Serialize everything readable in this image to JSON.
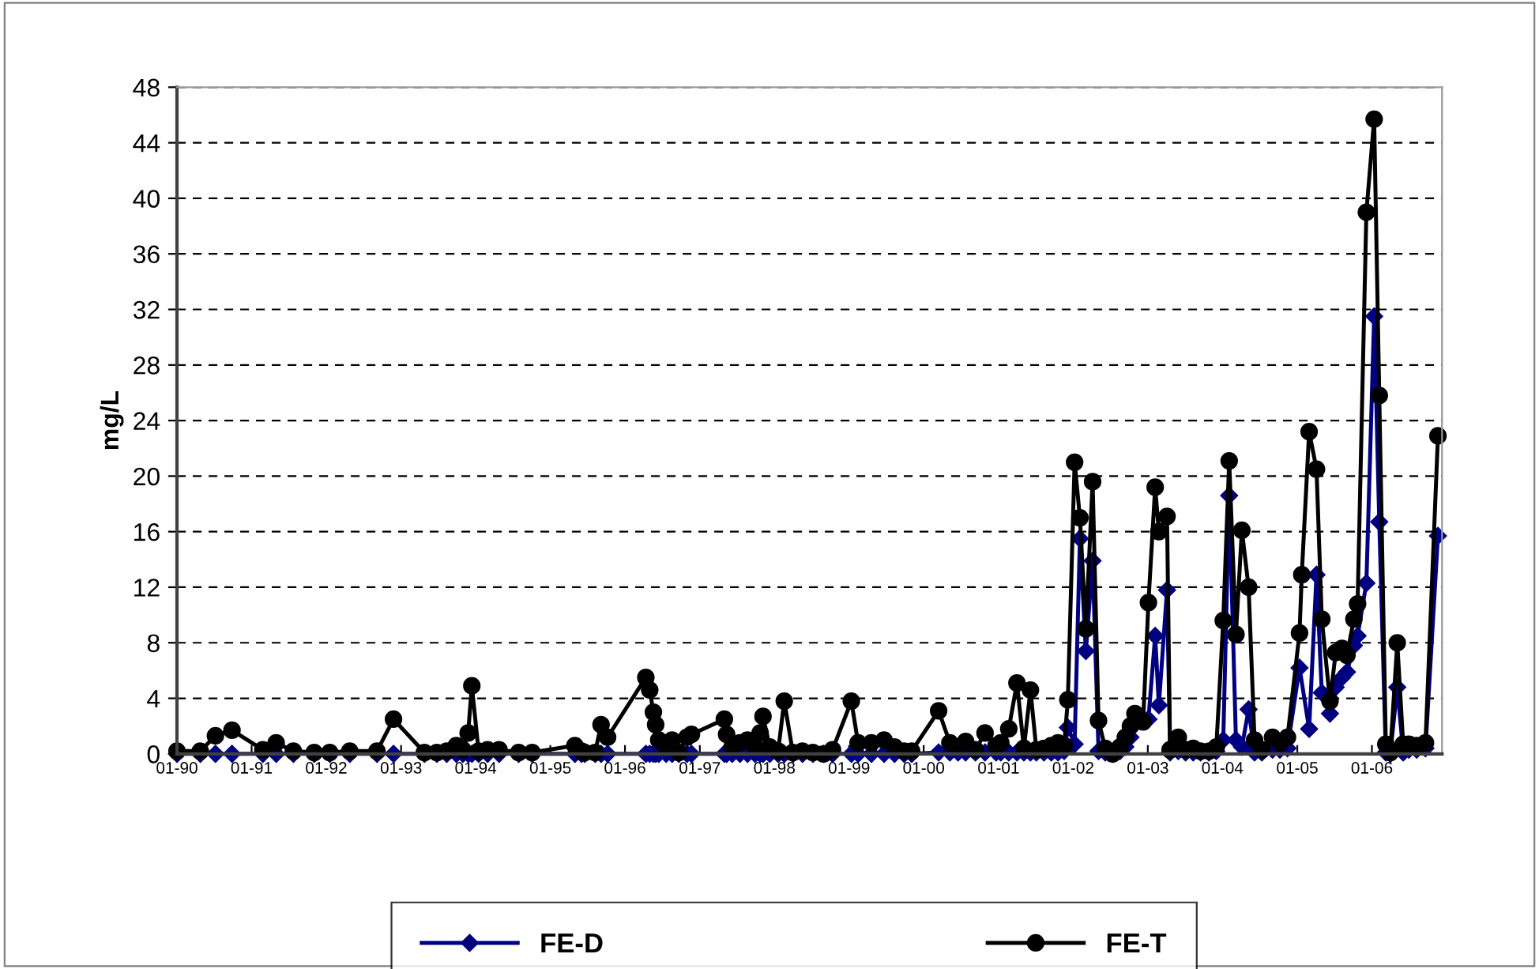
{
  "chart_data": {
    "type": "line",
    "ylabel": "mg/L",
    "x": [
      "1990-01-01",
      "1990-04-25",
      "1990-07-08",
      "1990-09-27",
      "1991-02-25",
      "1991-05-01",
      "1991-07-24",
      "1991-11-03",
      "1992-01-18",
      "1992-04-25",
      "1992-09-05",
      "1992-11-25",
      "1993-04-25",
      "1993-06-25",
      "1993-08-12",
      "1993-09-28",
      "1993-10-30",
      "1993-11-25",
      "1993-12-13",
      "1994-01-15",
      "1994-02-28",
      "1994-04-25",
      "1994-07-30",
      "1994-10-04",
      "1995-05-01",
      "1995-06-02",
      "1995-06-18",
      "1995-08-08",
      "1995-09-06",
      "1995-10-08",
      "1996-04-12",
      "1996-05-01",
      "1996-05-19",
      "1996-05-30",
      "1996-06-14",
      "1996-07-20",
      "1996-08-18",
      "1996-09-20",
      "1996-10-30",
      "1996-11-21",
      "1997-05-01",
      "1997-05-12",
      "1997-06-08",
      "1997-07-16",
      "1997-08-22",
      "1997-09-28",
      "1997-10-23",
      "1997-11-06",
      "1997-12-09",
      "1998-01-19",
      "1998-02-18",
      "1998-04-01",
      "1998-05-18",
      "1998-07-08",
      "1998-08-29",
      "1998-10-12",
      "1999-01-12",
      "1999-02-14",
      "1999-04-20",
      "1999-06-21",
      "1999-08-11",
      "1999-09-27",
      "1999-11-03",
      "2000-03-14",
      "2000-05-08",
      "2000-06-17",
      "2000-07-24",
      "2000-09-10",
      "2000-10-27",
      "2000-12-20",
      "2001-01-12",
      "2001-02-20",
      "2001-04-01",
      "2001-05-05",
      "2001-06-06",
      "2001-07-05",
      "2001-08-11",
      "2001-09-16",
      "2001-10-19",
      "2001-11-18",
      "2001-12-06",
      "2002-01-08",
      "2002-02-03",
      "2002-03-04",
      "2002-04-06",
      "2002-05-05",
      "2002-06-07",
      "2002-07-13",
      "2002-08-18",
      "2002-09-13",
      "2002-10-08",
      "2002-10-30",
      "2002-12-09",
      "2003-01-04",
      "2003-02-06",
      "2003-02-24",
      "2003-04-05",
      "2003-04-20",
      "2003-05-30",
      "2003-07-05",
      "2003-08-11",
      "2003-09-16",
      "2003-10-27",
      "2003-12-02",
      "2004-01-05",
      "2004-02-03",
      "2004-03-07",
      "2004-04-05",
      "2004-05-08",
      "2004-06-06",
      "2004-07-12",
      "2004-09-02",
      "2004-10-08",
      "2004-11-14",
      "2005-01-12",
      "2005-01-23",
      "2005-02-28",
      "2005-04-05",
      "2005-05-01",
      "2005-06-10",
      "2005-07-08",
      "2005-08-08",
      "2005-09-01",
      "2005-10-05",
      "2005-10-23",
      "2005-12-05",
      "2006-01-12",
      "2006-02-06",
      "2006-03-10",
      "2006-04-01",
      "2006-05-05",
      "2006-06-03",
      "2006-07-01",
      "2006-08-08",
      "2006-09-20",
      "2006-11-20"
    ],
    "series": [
      {
        "name": "FE-D",
        "color": "#000080",
        "marker": "diamond",
        "values": [
          0,
          0,
          0,
          0,
          0,
          0,
          0,
          0,
          0,
          0,
          0,
          0,
          0,
          0,
          0,
          0,
          0,
          0,
          0,
          0,
          0,
          0,
          0,
          0,
          0,
          0,
          0,
          0,
          0,
          0,
          0,
          0,
          0,
          0,
          0,
          0,
          0,
          0,
          0,
          0,
          0,
          0,
          0,
          0,
          0,
          0,
          0,
          0,
          0,
          0,
          0,
          0,
          0,
          0,
          0,
          0,
          0,
          0,
          0,
          0,
          0,
          0,
          0,
          0.1,
          0.1,
          0.1,
          0.1,
          0.1,
          0.1,
          0.1,
          0.1,
          0.1,
          0.1,
          0.1,
          0.1,
          0.1,
          0.1,
          0.1,
          0.1,
          0.2,
          1.9,
          0.7,
          15.5,
          7.4,
          13.9,
          0.2,
          0.1,
          0,
          0.2,
          0.5,
          1.2,
          2.2,
          2.5,
          2.5,
          8.5,
          3.5,
          11.8,
          0.1,
          0.2,
          0.1,
          0.1,
          0.1,
          0.1,
          0.2,
          1.0,
          18.6,
          1.0,
          0.5,
          3.2,
          0.1,
          0.1,
          0.3,
          0.3,
          0.4,
          6.2,
          null,
          1.8,
          12.9,
          4.4,
          2.9,
          4.8,
          5.5,
          5.9,
          7.8,
          8.5,
          12.3,
          31.5,
          16.7,
          0.1,
          0,
          4.8,
          0.1,
          0.3,
          0.3,
          0.4,
          15.7
        ]
      },
      {
        "name": "FE-T",
        "color": "#000000",
        "marker": "circle",
        "values": [
          0.2,
          0.2,
          1.3,
          1.7,
          0.3,
          0.8,
          0.2,
          0.1,
          0.1,
          0.2,
          0.2,
          2.5,
          0.1,
          0.1,
          0.2,
          0.6,
          0.3,
          1.5,
          4.9,
          0.2,
          0.3,
          0.3,
          0.1,
          0.1,
          0.6,
          0.2,
          0.1,
          0.1,
          2.1,
          1.2,
          5.5,
          4.6,
          3.0,
          2.1,
          1.0,
          0.5,
          1.0,
          0.1,
          1.2,
          1.4,
          2.5,
          1.4,
          0.5,
          0.8,
          1.0,
          0.5,
          1.5,
          2.7,
          0.5,
          0.2,
          3.8,
          0.1,
          0.2,
          0.1,
          0,
          0.3,
          3.8,
          0.8,
          0.8,
          1.0,
          0.5,
          0.2,
          0.2,
          3.1,
          0.8,
          0.5,
          0.9,
          0.3,
          1.5,
          0.6,
          0.8,
          1.8,
          5.1,
          0.4,
          4.6,
          0.3,
          0.4,
          0.6,
          0.8,
          0.6,
          3.9,
          21.0,
          17.0,
          9.0,
          19.6,
          2.4,
          0.4,
          0,
          0.5,
          1.2,
          2.0,
          2.9,
          2.3,
          10.9,
          19.2,
          16.0,
          17.1,
          0.3,
          1.2,
          0.3,
          0.4,
          0.2,
          0.2,
          0.5,
          9.6,
          21.1,
          8.6,
          16.1,
          12.0,
          1.0,
          0.3,
          1.2,
          0.8,
          1.2,
          8.7,
          12.9,
          23.2,
          20.5,
          9.7,
          3.8,
          7.3,
          7.6,
          7.1,
          9.7,
          10.8,
          39.0,
          45.7,
          25.8,
          0.7,
          0.1,
          8.0,
          0.7,
          0.7,
          0.6,
          0.8,
          22.9
        ]
      }
    ],
    "xlim": [
      "1990-01-01",
      "2006-12-10"
    ],
    "xticks": [
      {
        "value": "1990-01-01",
        "label": "01-90"
      },
      {
        "value": "1991-01-01",
        "label": "01-91"
      },
      {
        "value": "1992-01-01",
        "label": "01-92"
      },
      {
        "value": "1993-01-01",
        "label": "01-93"
      },
      {
        "value": "1994-01-01",
        "label": "01-94"
      },
      {
        "value": "1995-01-01",
        "label": "01-95"
      },
      {
        "value": "1996-01-01",
        "label": "01-96"
      },
      {
        "value": "1997-01-01",
        "label": "01-97"
      },
      {
        "value": "1998-01-01",
        "label": "01-98"
      },
      {
        "value": "1999-01-01",
        "label": "01-99"
      },
      {
        "value": "2000-01-01",
        "label": "01-00"
      },
      {
        "value": "2001-01-01",
        "label": "01-01"
      },
      {
        "value": "2002-01-01",
        "label": "01-02"
      },
      {
        "value": "2003-01-01",
        "label": "01-03"
      },
      {
        "value": "2004-01-01",
        "label": "01-04"
      },
      {
        "value": "2005-01-01",
        "label": "01-05"
      },
      {
        "value": "2006-01-01",
        "label": "01-06"
      }
    ],
    "ylim": [
      0,
      48
    ],
    "yticks": [
      0,
      4,
      8,
      12,
      16,
      20,
      24,
      28,
      32,
      36,
      40,
      44,
      48
    ],
    "grid": "y",
    "legend": "bottom",
    "line_style": "solid"
  }
}
